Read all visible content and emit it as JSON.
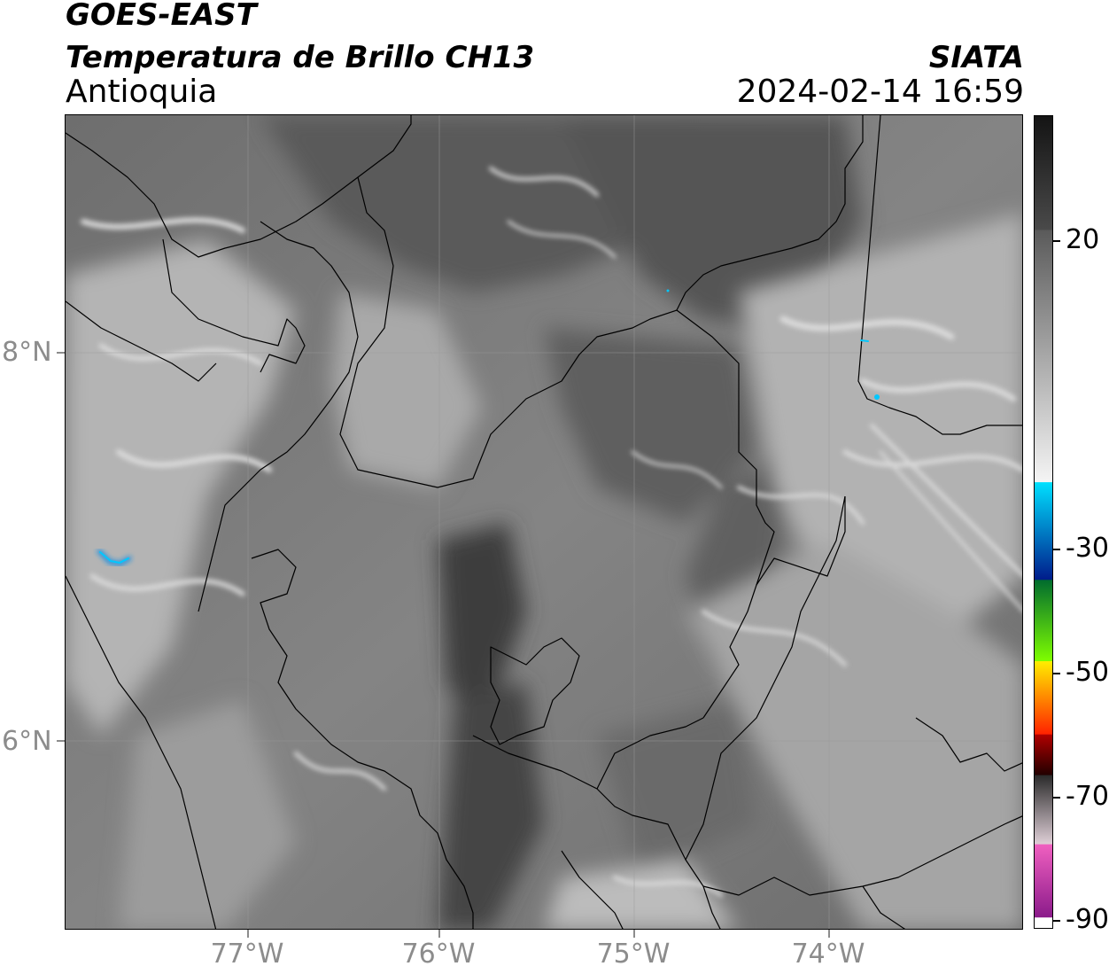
{
  "header": {
    "agency": "GOES-EAST",
    "product": "Temperatura de Brillo CH13",
    "region": "Antioquia",
    "organization": "SIATA",
    "timestamp": "2024-02-14 16:59"
  },
  "map": {
    "latitude_labels": [
      "8°N",
      "6°N"
    ],
    "longitude_labels": [
      "77°W",
      "76°W",
      "75°W",
      "74°W"
    ],
    "background_style": "grayscale brightness temperature imagery with cloud features",
    "colors": {
      "boundary": "#000000",
      "gridline": "#9a9a9a",
      "cold_cloud": "#1f8fe0"
    }
  },
  "colorbar": {
    "tick_labels": [
      "20",
      "-30",
      "-50",
      "-70",
      "-90"
    ],
    "palette": [
      {
        "from": 0.0,
        "to": 0.14,
        "color_start": "#141414",
        "color_end": "#4a4a4a"
      },
      {
        "from": 0.14,
        "to": 0.45,
        "color_start": "#5a5a5a",
        "color_end": "#f5f5f5"
      },
      {
        "from": 0.45,
        "to": 0.57,
        "color_start": "#00e0ff",
        "color_end": "#001a8a"
      },
      {
        "from": 0.57,
        "to": 0.67,
        "color_start": "#006b2e",
        "color_end": "#7fff00"
      },
      {
        "from": 0.67,
        "to": 0.76,
        "color_start": "#ffee00",
        "color_end": "#ff2000"
      },
      {
        "from": 0.76,
        "to": 0.81,
        "color_start": "#b00000",
        "color_end": "#200000"
      },
      {
        "from": 0.81,
        "to": 0.895,
        "color_start": "#2a2a2a",
        "color_end": "#e0d0d8"
      },
      {
        "from": 0.895,
        "to": 0.985,
        "color_start": "#f060c0",
        "color_end": "#8a1a8a"
      },
      {
        "from": 0.985,
        "to": 1.0,
        "color_start": "#ffffff",
        "color_end": "#ffffff"
      }
    ]
  }
}
